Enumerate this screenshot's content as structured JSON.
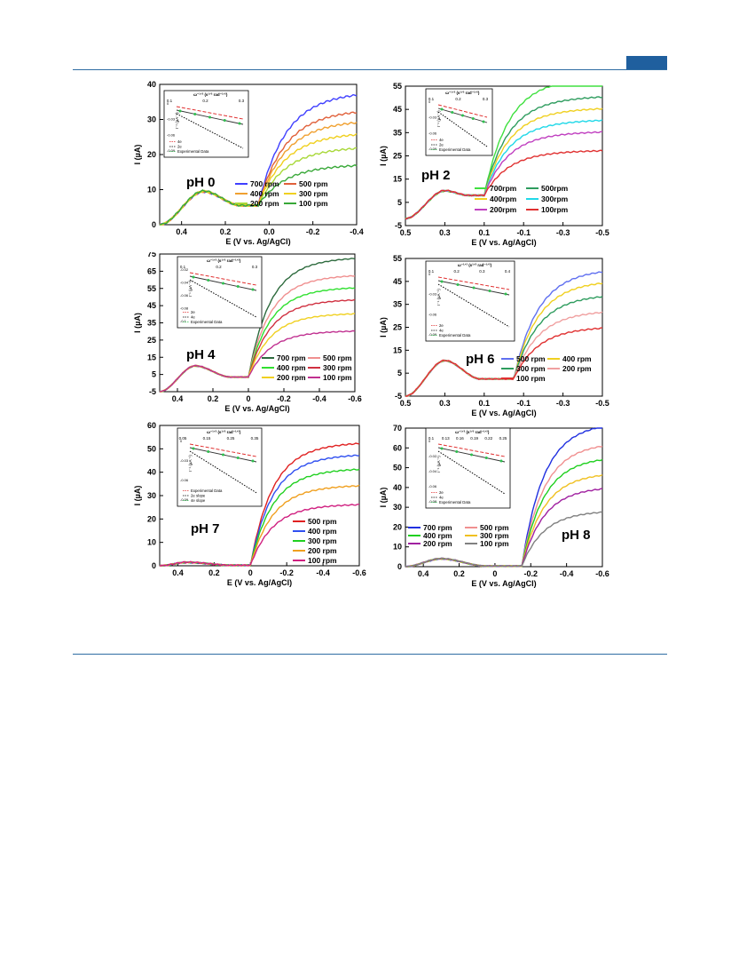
{
  "page": {
    "accent_color": "#1f5f9e"
  },
  "panels": [
    {
      "ph_label": "pH 0",
      "xlabel": "E (V vs. Ag/AgCl)",
      "ylabel": "I (µA)",
      "x_ticks": [
        "0.4",
        "0.2",
        "0.0",
        "-0.2",
        "-0.4"
      ],
      "y_ticks": [
        "0",
        "10",
        "20",
        "30",
        "40"
      ],
      "legend": [
        {
          "label": "700 rpm",
          "color": "#3f3fff"
        },
        {
          "label": "500 rpm",
          "color": "#e0603a"
        },
        {
          "label": "400 rpm",
          "color": "#f0a030"
        },
        {
          "label": "300 rpm",
          "color": "#f0d020"
        },
        {
          "label": "200 rpm",
          "color": "#a8d838"
        },
        {
          "label": "100 rpm",
          "color": "#38a838"
        }
      ],
      "inset": {
        "title": "ω⁻¹ᐟ² (s¹ᐟ² rad⁻¹ᐟ²)",
        "ylabel": "I⁻¹ (µA⁻¹)",
        "x_ticks": [
          "0.1",
          "0.2",
          "0.3"
        ],
        "y_ticks": [
          "0",
          "-0.03",
          "-0.06",
          "-0.09"
        ],
        "legend": [
          "4e",
          "2e",
          "Experimental Data"
        ]
      }
    },
    {
      "ph_label": "pH 2",
      "xlabel": "E (V vs. Ag/AgCl)",
      "ylabel": "I (µA)",
      "x_ticks": [
        "0.5",
        "0.3",
        "0.1",
        "-0.1",
        "-0.3",
        "-0.5"
      ],
      "y_ticks": [
        "-5",
        "5",
        "15",
        "25",
        "35",
        "45",
        "55"
      ],
      "legend": [
        {
          "label": "700rpm",
          "color": "#40e040"
        },
        {
          "label": "500rpm",
          "color": "#2e9c5e"
        },
        {
          "label": "400rpm",
          "color": "#f0d020"
        },
        {
          "label": "300rpm",
          "color": "#20d8e8"
        },
        {
          "label": "200rpm",
          "color": "#c040c0"
        },
        {
          "label": "100rpm",
          "color": "#e03030"
        }
      ],
      "inset": {
        "title": "ω⁻¹ᐟ² (s¹ᐟ² rad⁻¹ᐟ²)",
        "ylabel": "I⁻¹ (µA⁻¹)",
        "x_ticks": [
          "0.1",
          "0.2",
          "0.3"
        ],
        "y_ticks": [
          "0",
          "-0.03",
          "-0.06",
          "-0.09"
        ],
        "legend": [
          "4e",
          "2e",
          "Experimental Data"
        ]
      }
    },
    {
      "ph_label": "pH 4",
      "xlabel": "E (V vs. Ag/AgCl)",
      "ylabel": "I (µA)",
      "x_ticks": [
        "0.4",
        "0.2",
        "0",
        "-0.2",
        "-0.4",
        "-0.6"
      ],
      "y_ticks": [
        "-5",
        "5",
        "15",
        "25",
        "35",
        "45",
        "55",
        "65",
        "75"
      ],
      "legend": [
        {
          "label": "700 rpm",
          "color": "#2e6b3e"
        },
        {
          "label": "500 rpm",
          "color": "#f09090"
        },
        {
          "label": "400 rpm",
          "color": "#30e030"
        },
        {
          "label": "300 rpm",
          "color": "#d03040"
        },
        {
          "label": "200 rpm",
          "color": "#f0d020"
        },
        {
          "label": "100 rpm",
          "color": "#c03090"
        }
      ],
      "inset": {
        "title": "ω⁻¹ᐟ² (s¹ᐟ² rad⁻¹ᐟ²)",
        "ylabel": "I⁻¹ (µA⁻¹)",
        "x_ticks": [
          "0.1",
          "0.2",
          "0.3"
        ],
        "y_ticks": [
          "-0.02",
          "-0.04",
          "-0.06",
          "-0.08",
          "-0.1"
        ],
        "legend": [
          "2e",
          "4e",
          "Experimental Data"
        ]
      }
    },
    {
      "ph_label": "pH 6",
      "xlabel": "E (V vs. Ag/AgCl)",
      "ylabel": "I (µA)",
      "x_ticks": [
        "0.5",
        "0.3",
        "0.1",
        "-0.1",
        "-0.3",
        "-0.5"
      ],
      "y_ticks": [
        "-5",
        "5",
        "15",
        "25",
        "35",
        "45",
        "55"
      ],
      "legend": [
        {
          "label": "500 rpm",
          "color": "#6070f0"
        },
        {
          "label": "400 rpm",
          "color": "#f0d020"
        },
        {
          "label": "300 rpm",
          "color": "#2e9c5e"
        },
        {
          "label": "200 rpm",
          "color": "#f0a0a0"
        },
        {
          "label": "100 rpm",
          "color": "#e03030"
        }
      ],
      "inset": {
        "title": "ω⁻¹ᐟ² (s¹ᐟ² rad⁻¹ᐟ²)",
        "ylabel": "I⁻¹ (µA⁻¹)",
        "x_ticks": [
          "0.1",
          "0.2",
          "0.3",
          "0.4"
        ],
        "y_ticks": [
          "0",
          "-0.03",
          "-0.06",
          "-0.09"
        ],
        "legend": [
          "2e",
          "4e",
          "Experimental Data"
        ]
      }
    },
    {
      "ph_label": "pH 7",
      "xlabel": "E (V vs. Ag/AgCl)",
      "ylabel": "I (µA)",
      "x_ticks": [
        "0.4",
        "0.2",
        "0",
        "-0.2",
        "-0.4",
        "-0.6"
      ],
      "y_ticks": [
        "0",
        "10",
        "20",
        "30",
        "40",
        "50",
        "60"
      ],
      "legend": [
        {
          "label": "500 rpm",
          "color": "#e02020"
        },
        {
          "label": "400 rpm",
          "color": "#3050f0"
        },
        {
          "label": "300 rpm",
          "color": "#20d020"
        },
        {
          "label": "200 rpm",
          "color": "#f0a020"
        },
        {
          "label": "100 rpm",
          "color": "#d02080"
        }
      ],
      "inset": {
        "title": "ω⁻¹ᐟ² (s¹ᐟ² rad⁻¹ᐟ²)",
        "ylabel": "I⁻¹ (µA⁻¹)",
        "x_ticks": [
          "0.05",
          "0.15",
          "0.25",
          "0.35"
        ],
        "y_ticks": [
          "0",
          "-0.03",
          "-0.06",
          "-0.09"
        ],
        "legend": [
          "Experimental Data",
          "2e slope",
          "4e slope"
        ]
      }
    },
    {
      "ph_label": "pH 8",
      "xlabel": "E (V vs. Ag/AgCl)",
      "ylabel": "I (µA)",
      "x_ticks": [
        "0.4",
        "0.2",
        "0",
        "-0.2",
        "-0.4",
        "-0.6"
      ],
      "y_ticks": [
        "0",
        "10",
        "20",
        "30",
        "40",
        "50",
        "60",
        "70"
      ],
      "legend": [
        {
          "label": "700 rpm",
          "color": "#2030e0"
        },
        {
          "label": "500 rpm",
          "color": "#f09090"
        },
        {
          "label": "400 rpm",
          "color": "#20d020"
        },
        {
          "label": "300 rpm",
          "color": "#f0c020"
        },
        {
          "label": "200 rpm",
          "color": "#a020a0"
        },
        {
          "label": "100 rpm",
          "color": "#808080"
        }
      ],
      "inset": {
        "title": "ω⁻¹ᐟ² (s¹ᐟ² rad⁻¹ᐟ²)",
        "ylabel": "I⁻¹ (µA⁻¹)",
        "x_ticks": [
          "0.1",
          "0.13",
          "0.16",
          "0.19",
          "0.22",
          "0.25"
        ],
        "y_ticks": [
          "0",
          "-0.02",
          "-0.04",
          "-0.06",
          "-0.08"
        ],
        "legend": [
          "2e",
          "4e",
          "Experimental Data"
        ]
      }
    }
  ],
  "chart_data": [
    {
      "type": "line",
      "title": "pH 0",
      "xlabel": "E (V vs. Ag/AgCl)",
      "ylabel": "I (µA)",
      "xlim": [
        0.5,
        -0.4
      ],
      "ylim": [
        0,
        40
      ],
      "grid": false,
      "legend_position": "bottom-right",
      "peak": {
        "E": 0.3,
        "I": 9.5
      },
      "valley": {
        "E": 0.13,
        "I": 5.5
      },
      "onset_E": 0.05,
      "series": [
        {
          "name": "700 rpm",
          "color": "#3f3fff",
          "limit": 37.5
        },
        {
          "name": "500 rpm",
          "color": "#e0603a",
          "limit": 32.5
        },
        {
          "name": "400 rpm",
          "color": "#f0a030",
          "limit": 29.5
        },
        {
          "name": "300 rpm",
          "color": "#f0d020",
          "limit": 26
        },
        {
          "name": "200 rpm",
          "color": "#a8d838",
          "limit": 22
        },
        {
          "name": "100 rpm",
          "color": "#38a838",
          "limit": 17
        }
      ]
    },
    {
      "type": "line",
      "title": "pH 2",
      "xlabel": "E (V vs. Ag/AgCl)",
      "ylabel": "I (µA)",
      "xlim": [
        0.5,
        -0.5
      ],
      "ylim": [
        -5,
        55
      ],
      "grid": false,
      "legend_position": "bottom-right",
      "peak": {
        "E": 0.3,
        "I": 10
      },
      "valley": {
        "E": 0.18,
        "I": 8
      },
      "onset_E": 0.1,
      "start_I": -2,
      "series": [
        {
          "name": "700rpm",
          "color": "#40e040",
          "limit": 58
        },
        {
          "name": "500rpm",
          "color": "#2e9c5e",
          "limit": 50
        },
        {
          "name": "400rpm",
          "color": "#f0d020",
          "limit": 45
        },
        {
          "name": "300rpm",
          "color": "#20d8e8",
          "limit": 40
        },
        {
          "name": "200rpm",
          "color": "#c040c0",
          "limit": 35
        },
        {
          "name": "100rpm",
          "color": "#e03030",
          "limit": 27
        }
      ]
    },
    {
      "type": "line",
      "title": "pH 4",
      "xlabel": "E (V vs. Ag/AgCl)",
      "ylabel": "I (µA)",
      "xlim": [
        0.5,
        -0.6
      ],
      "ylim": [
        -5,
        75
      ],
      "grid": false,
      "legend_position": "bottom-right",
      "peak": {
        "E": 0.3,
        "I": 10
      },
      "valley": {
        "E": 0.1,
        "I": 3.5
      },
      "onset_E": 0.0,
      "start_I": -5,
      "series": [
        {
          "name": "700 rpm",
          "color": "#2e6b3e",
          "limit": 72
        },
        {
          "name": "500 rpm",
          "color": "#f09090",
          "limit": 62
        },
        {
          "name": "400 rpm",
          "color": "#30e030",
          "limit": 55
        },
        {
          "name": "300 rpm",
          "color": "#d03040",
          "limit": 48
        },
        {
          "name": "200 rpm",
          "color": "#f0d020",
          "limit": 40
        },
        {
          "name": "100 rpm",
          "color": "#c03090",
          "limit": 30
        }
      ]
    },
    {
      "type": "line",
      "title": "pH 6",
      "xlabel": "E (V vs. Ag/AgCl)",
      "ylabel": "I (µA)",
      "xlim": [
        0.5,
        -0.5
      ],
      "ylim": [
        -5,
        55
      ],
      "grid": false,
      "legend_position": "bottom-right",
      "peak": {
        "E": 0.3,
        "I": 10.5
      },
      "valley": {
        "E": 0.12,
        "I": 2.5
      },
      "onset_E": -0.05,
      "start_I": -5,
      "series": [
        {
          "name": "500 rpm",
          "color": "#6070f0",
          "limit": 50
        },
        {
          "name": "400 rpm",
          "color": "#f0d020",
          "limit": 45
        },
        {
          "name": "300 rpm",
          "color": "#2e9c5e",
          "limit": 39
        },
        {
          "name": "200 rpm",
          "color": "#f0a0a0",
          "limit": 32
        },
        {
          "name": "100 rpm",
          "color": "#e03030",
          "limit": 25
        }
      ]
    },
    {
      "type": "line",
      "title": "pH 7",
      "xlabel": "E (V vs. Ag/AgCl)",
      "ylabel": "I (µA)",
      "xlim": [
        0.5,
        -0.6
      ],
      "ylim": [
        0,
        60
      ],
      "grid": false,
      "legend_position": "bottom-right",
      "peak": {
        "E": 0.35,
        "I": 1.5
      },
      "valley": {
        "E": 0.1,
        "I": 0.2
      },
      "onset_E": 0.0,
      "start_I": 0,
      "series": [
        {
          "name": "500 rpm",
          "color": "#e02020",
          "limit": 52
        },
        {
          "name": "400 rpm",
          "color": "#3050f0",
          "limit": 47
        },
        {
          "name": "300 rpm",
          "color": "#20d020",
          "limit": 41
        },
        {
          "name": "200 rpm",
          "color": "#f0a020",
          "limit": 34
        },
        {
          "name": "100 rpm",
          "color": "#d02080",
          "limit": 26
        }
      ]
    },
    {
      "type": "line",
      "title": "pH 8",
      "xlabel": "E (V vs. Ag/AgCl)",
      "ylabel": "I (µA)",
      "xlim": [
        0.5,
        -0.6
      ],
      "ylim": [
        0,
        70
      ],
      "grid": false,
      "legend_position": "bottom-right",
      "peak": {
        "E": 0.3,
        "I": 4
      },
      "valley": {
        "E": 0.05,
        "I": 0.3
      },
      "onset_E": -0.15,
      "start_I": 0,
      "series": [
        {
          "name": "700 rpm",
          "color": "#2030e0",
          "limit": 72
        },
        {
          "name": "500 rpm",
          "color": "#f09090",
          "limit": 62
        },
        {
          "name": "400 rpm",
          "color": "#20d020",
          "limit": 55
        },
        {
          "name": "300 rpm",
          "color": "#f0c020",
          "limit": 47
        },
        {
          "name": "200 rpm",
          "color": "#a020a0",
          "limit": 40
        },
        {
          "name": "100 rpm",
          "color": "#808080",
          "limit": 28
        }
      ]
    }
  ]
}
